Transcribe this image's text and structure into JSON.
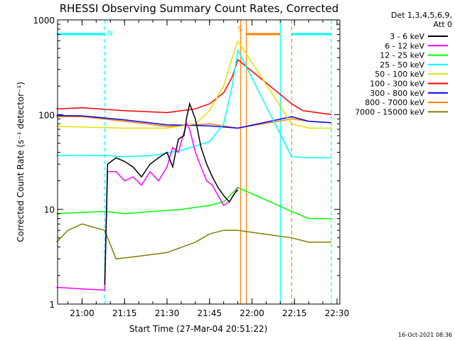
{
  "chart_data": {
    "type": "line",
    "title": "RHESSI Observing Summary Count Rates, Corrected",
    "xlabel": "Start Time (27-Mar-04 20:51:22)",
    "ylabel": "Corrected Count Rate (s⁻¹ detector⁻¹)",
    "y_scale": "log",
    "ylim": [
      1,
      1000
    ],
    "xlim": [
      "20:51:22",
      "22:31:00"
    ],
    "x_ticks": [
      "21:00",
      "21:15",
      "21:30",
      "21:45",
      "22:00",
      "22:15",
      "22:30"
    ],
    "y_ticks": [
      "1",
      "10",
      "100",
      "1000"
    ],
    "legend_header": [
      "Det 1,3,4,5,6,9,",
      "Att 0"
    ],
    "legend_position": "right",
    "timestamp": "16-Oct-2021 08:36",
    "flag_labels": [
      "N",
      "S"
    ],
    "series": [
      {
        "name": "3 - 6 keV",
        "color": "#000000",
        "points": [
          [
            "21:08",
            1.6
          ],
          [
            "21:09",
            30
          ],
          [
            "21:12",
            35
          ],
          [
            "21:15",
            32
          ],
          [
            "21:18",
            28
          ],
          [
            "21:21",
            22
          ],
          [
            "21:24",
            30
          ],
          [
            "21:27",
            35
          ],
          [
            "21:30",
            40
          ],
          [
            "21:32",
            28
          ],
          [
            "21:34",
            55
          ],
          [
            "21:36",
            60
          ],
          [
            "21:37",
            95
          ],
          [
            "21:38",
            130
          ],
          [
            "21:40",
            90
          ],
          [
            "21:42",
            45
          ],
          [
            "21:44",
            30
          ],
          [
            "21:46",
            22
          ],
          [
            "21:48",
            17
          ],
          [
            "21:50",
            14
          ],
          [
            "21:52",
            12
          ],
          [
            "21:54",
            15
          ],
          [
            "21:55",
            16
          ]
        ]
      },
      {
        "name": "6 - 12 keV",
        "color": "#ff00ff",
        "points": [
          [
            "20:51",
            1.5
          ],
          [
            "21:08",
            1.4
          ],
          [
            "21:09",
            25
          ],
          [
            "21:12",
            25
          ],
          [
            "21:15",
            20
          ],
          [
            "21:18",
            22
          ],
          [
            "21:21",
            18
          ],
          [
            "21:24",
            25
          ],
          [
            "21:27",
            20
          ],
          [
            "21:30",
            28
          ],
          [
            "21:32",
            45
          ],
          [
            "21:34",
            40
          ],
          [
            "21:36",
            65
          ],
          [
            "21:37",
            80
          ],
          [
            "21:38",
            70
          ],
          [
            "21:40",
            40
          ],
          [
            "21:42",
            28
          ],
          [
            "21:44",
            20
          ],
          [
            "21:46",
            18
          ],
          [
            "21:48",
            14
          ],
          [
            "21:50",
            11
          ],
          [
            "21:52",
            12
          ],
          [
            "21:54",
            15
          ],
          [
            "21:55",
            17
          ]
        ]
      },
      {
        "name": "12 - 25 keV",
        "color": "#00ff00",
        "points": [
          [
            "20:51",
            9
          ],
          [
            "21:08",
            9.5
          ],
          [
            "21:15",
            9
          ],
          [
            "21:25",
            9.5
          ],
          [
            "21:35",
            10
          ],
          [
            "21:45",
            11
          ],
          [
            "21:50",
            12
          ],
          [
            "21:55",
            17
          ],
          [
            "22:14",
            9.5
          ],
          [
            "22:20",
            8
          ],
          [
            "22:28",
            8
          ]
        ]
      },
      {
        "name": "25 - 50 keV",
        "color": "#00ffff",
        "points": [
          [
            "20:51",
            37
          ],
          [
            "21:08",
            37
          ],
          [
            "21:15",
            36
          ],
          [
            "21:25",
            37
          ],
          [
            "21:35",
            42
          ],
          [
            "21:45",
            52
          ],
          [
            "21:50",
            80
          ],
          [
            "21:53",
            200
          ],
          [
            "21:55",
            480
          ],
          [
            "22:14",
            36
          ],
          [
            "22:20",
            35
          ],
          [
            "22:28",
            35
          ]
        ]
      },
      {
        "name": "50 - 100 keV",
        "color": "#e0e000",
        "points": [
          [
            "20:51",
            75
          ],
          [
            "21:00",
            74
          ],
          [
            "21:15",
            72
          ],
          [
            "21:30",
            72
          ],
          [
            "21:40",
            80
          ],
          [
            "21:45",
            110
          ],
          [
            "21:50",
            200
          ],
          [
            "21:53",
            400
          ],
          [
            "21:55",
            600
          ],
          [
            "22:14",
            80
          ],
          [
            "22:20",
            72
          ],
          [
            "22:28",
            72
          ]
        ]
      },
      {
        "name": "100 - 300 keV",
        "color": "#ff0000",
        "points": [
          [
            "20:51",
            115
          ],
          [
            "21:00",
            118
          ],
          [
            "21:15",
            110
          ],
          [
            "21:30",
            105
          ],
          [
            "21:40",
            115
          ],
          [
            "21:45",
            130
          ],
          [
            "21:50",
            170
          ],
          [
            "21:53",
            250
          ],
          [
            "21:55",
            380
          ],
          [
            "22:14",
            130
          ],
          [
            "22:18",
            110
          ],
          [
            "22:28",
            100
          ]
        ]
      },
      {
        "name": "300 - 800 keV",
        "color": "#0000ff",
        "points": [
          [
            "20:51",
            98
          ],
          [
            "21:00",
            97
          ],
          [
            "21:15",
            88
          ],
          [
            "21:30",
            78
          ],
          [
            "21:40",
            77
          ],
          [
            "21:45",
            76
          ],
          [
            "21:50",
            74
          ],
          [
            "21:55",
            72
          ],
          [
            "22:14",
            95
          ],
          [
            "22:20",
            85
          ],
          [
            "22:28",
            82
          ]
        ]
      },
      {
        "name": "800 - 7000 keV",
        "color": "#ff8000",
        "points": [
          [
            "20:51",
            95
          ],
          [
            "21:00",
            95
          ],
          [
            "21:15",
            85
          ],
          [
            "21:30",
            75
          ],
          [
            "21:40",
            78
          ],
          [
            "21:45",
            80
          ],
          [
            "21:50",
            76
          ],
          [
            "21:55",
            72
          ],
          [
            "22:14",
            90
          ],
          [
            "22:20",
            85
          ],
          [
            "22:28",
            82
          ]
        ]
      },
      {
        "name": "7000 - 15000 keV",
        "color": "#808000",
        "points": [
          [
            "20:51",
            4.5
          ],
          [
            "20:55",
            6
          ],
          [
            "21:00",
            7
          ],
          [
            "21:08",
            6
          ],
          [
            "21:12",
            3
          ],
          [
            "21:20",
            3.2
          ],
          [
            "21:30",
            3.5
          ],
          [
            "21:40",
            4.5
          ],
          [
            "21:45",
            5.5
          ],
          [
            "21:50",
            6
          ],
          [
            "21:55",
            6
          ],
          [
            "22:14",
            5
          ],
          [
            "22:20",
            4.5
          ],
          [
            "22:28",
            4.5
          ]
        ]
      }
    ],
    "flag_bars": [
      {
        "label": "N",
        "color": "#00ffff",
        "start": "20:51",
        "end": "21:08"
      },
      {
        "label": "S",
        "color": "#ff8000",
        "start": "21:58",
        "end": "22:10"
      },
      {
        "label": "",
        "color": "#00ffff",
        "start": "22:14",
        "end": "22:28"
      }
    ],
    "markers": [
      {
        "color": "#00ffff",
        "style": "dashed",
        "time": "21:08"
      },
      {
        "color": "#ff8000",
        "style": "solid",
        "time": "21:56"
      },
      {
        "color": "#ff8000",
        "style": "solid",
        "time": "21:58"
      },
      {
        "color": "#00ffff",
        "style": "solid",
        "time": "22:10"
      },
      {
        "color": "#ff8000",
        "style": "dashed",
        "time": "22:14"
      },
      {
        "color": "#00ffff",
        "style": "dashed",
        "time": "22:28"
      }
    ]
  }
}
